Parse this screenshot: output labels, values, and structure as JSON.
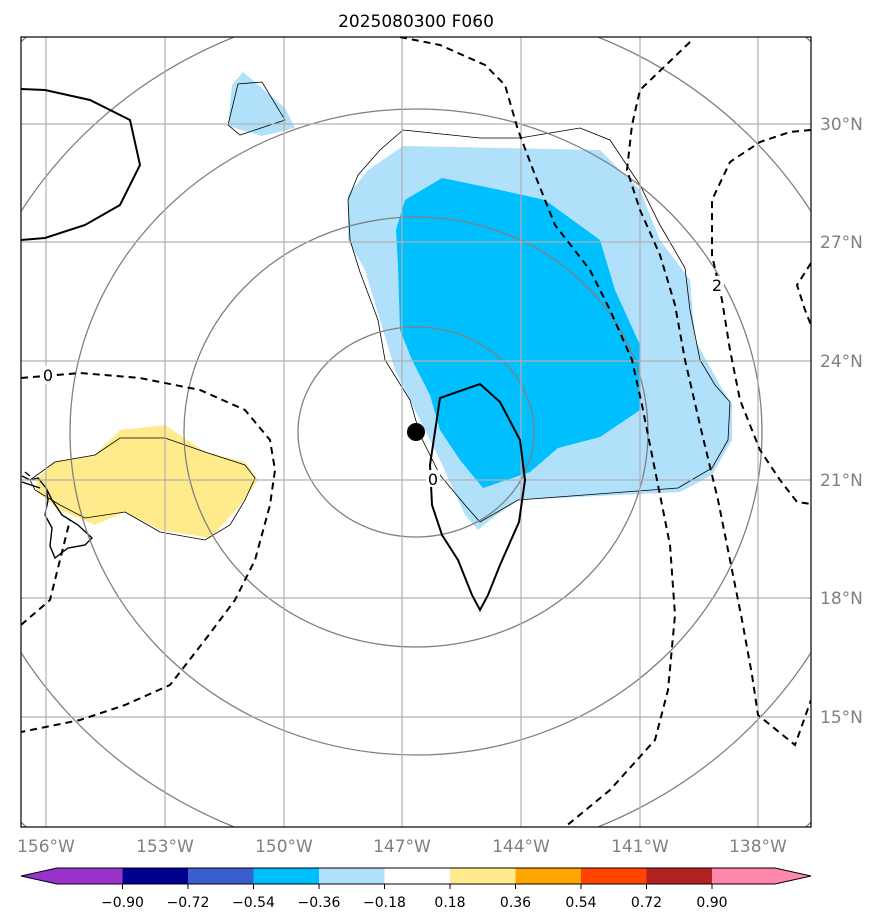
{
  "chart_data": {
    "type": "map",
    "title": "2025080300 F060",
    "x_tick_labels": [
      "156°W",
      "153°W",
      "150°W",
      "147°W",
      "144°W",
      "141°W",
      "138°W"
    ],
    "y_tick_labels": [
      "30°N",
      "27°N",
      "24°N",
      "21°N",
      "18°N",
      "15°N"
    ],
    "lon_ticks": [
      -156,
      -153,
      -150,
      -147,
      -144,
      -141,
      -138
    ],
    "lat_ticks": [
      30,
      27,
      24,
      21,
      18,
      15
    ],
    "storm_center": {
      "lon": -146.7,
      "lat": 22.2
    },
    "contour_labels": [
      "0",
      "0",
      "2"
    ],
    "colorbar": {
      "ticks": [
        "−0.90",
        "−0.72",
        "−0.54",
        "−0.36",
        "−0.18",
        "0.18",
        "0.36",
        "0.54",
        "0.72",
        "0.90"
      ],
      "colors": [
        "#9a33cc",
        "#000090",
        "#3a5fcd",
        "#00bfff",
        "#b0e0fa",
        "#ffffff",
        "#ffeb8c",
        "#ffa500",
        "#ff4500",
        "#b22222",
        "#ff88aa"
      ]
    },
    "colors": {
      "light_blue": "#b0e0fa",
      "deep_sky_blue": "#00bfff",
      "light_yellow": "#ffeb8c",
      "gridline": "#b0b0b0",
      "range_ring": "#808080"
    }
  }
}
